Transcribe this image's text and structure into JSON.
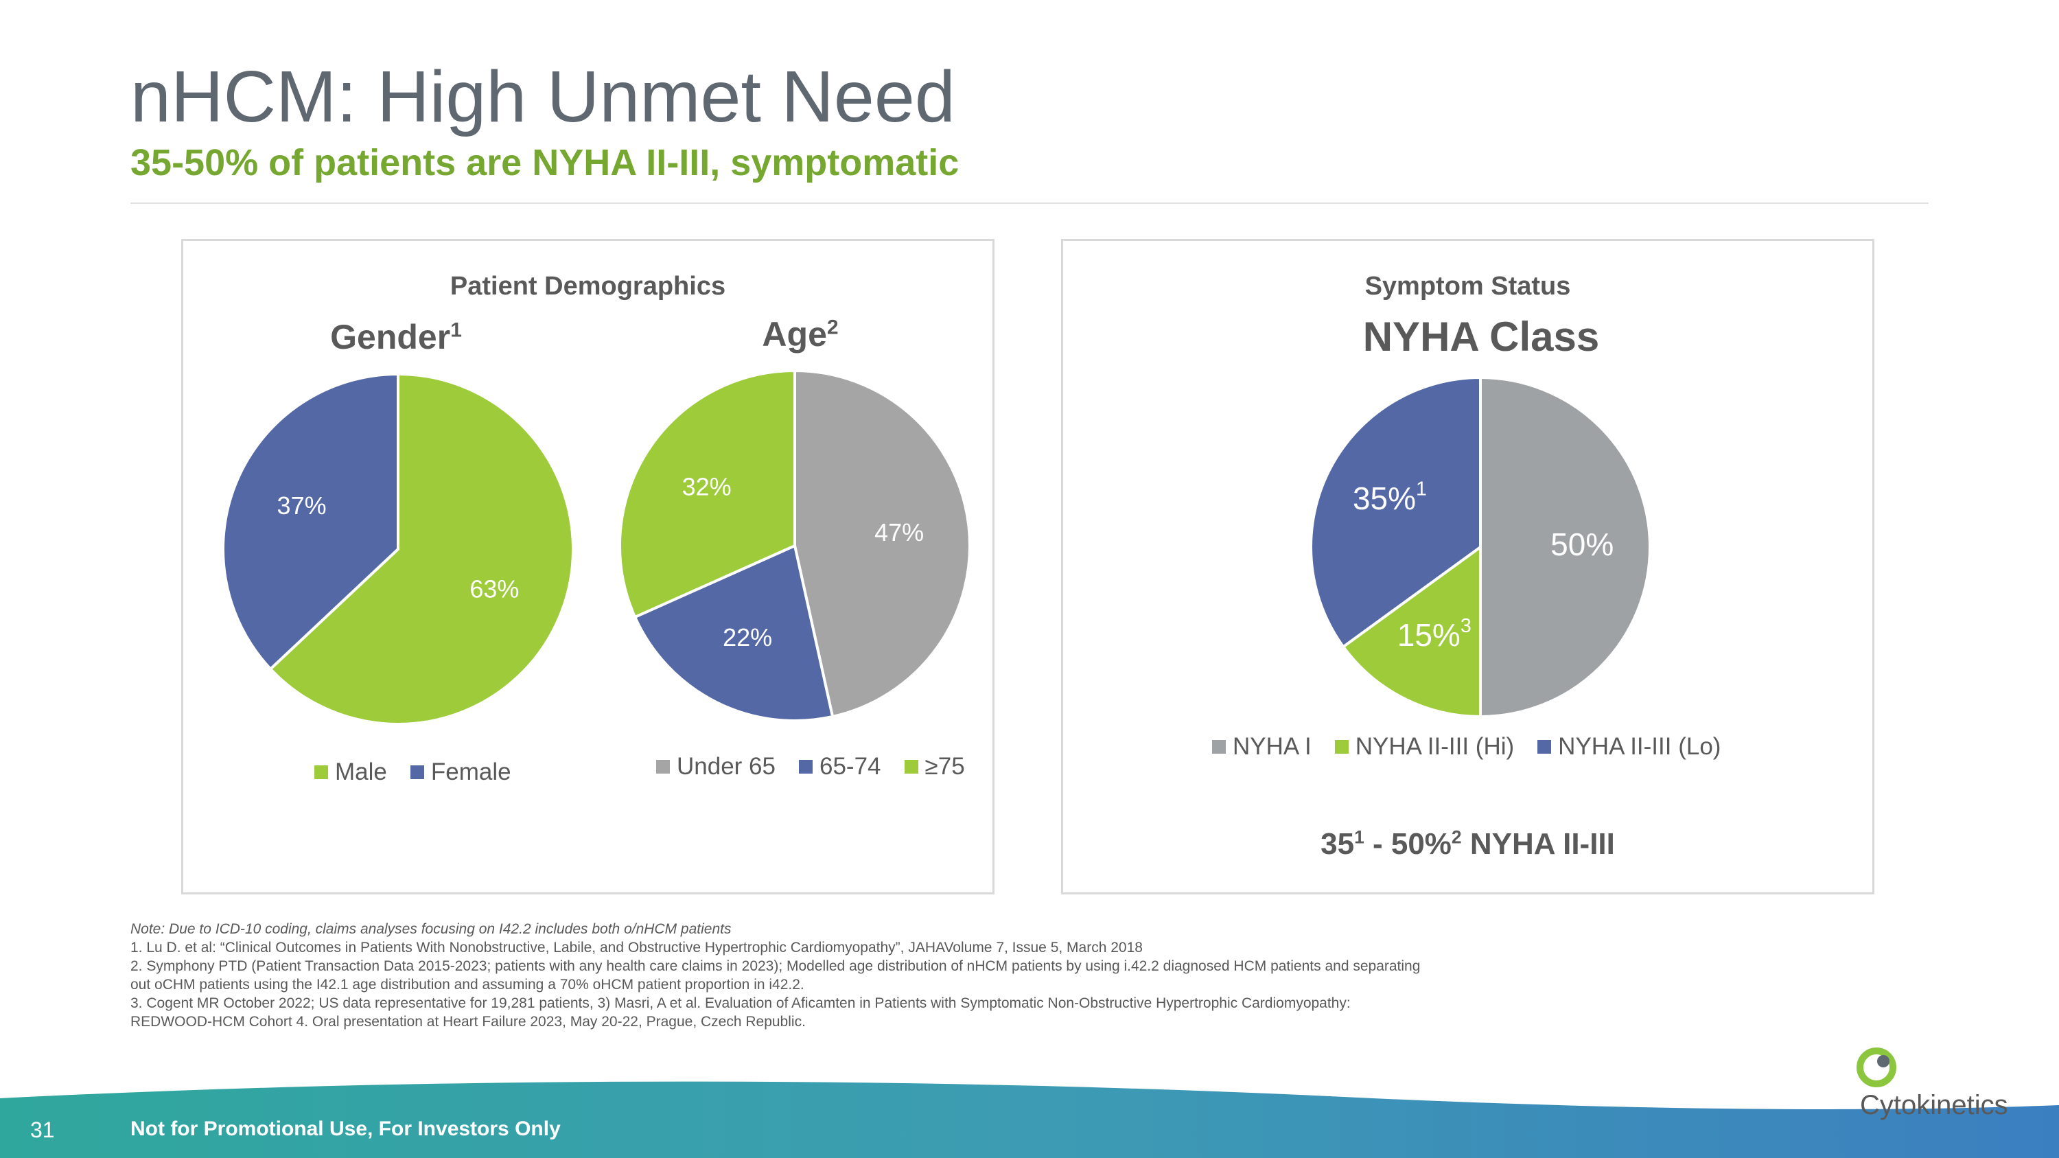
{
  "title": "nHCM: High Unmet Need",
  "subtitle": "35-50% of patients are NYHA II-III, symptomatic",
  "panels": {
    "left_title": "Patient Demographics",
    "right_title": "Symptom Status"
  },
  "colors": {
    "green": "#9dcb3a",
    "blue": "#5368a5",
    "gray_age": "#a5a5a5",
    "gray_nyha": "#9ea2a4",
    "title_gray": "#5f6770",
    "subtitle_green": "#76a731"
  },
  "chart_data": [
    {
      "type": "pie",
      "title": "Gender",
      "title_sup": "1",
      "slices": [
        {
          "label": "Male",
          "value": 63,
          "display": "63%",
          "color": "#9dcb3a"
        },
        {
          "label": "Female",
          "value": 37,
          "display": "37%",
          "color": "#5368a5"
        }
      ],
      "legend": [
        "Male",
        "Female"
      ]
    },
    {
      "type": "pie",
      "title": "Age",
      "title_sup": "2",
      "slices": [
        {
          "label": "Under 65",
          "value": 47,
          "display": "47%",
          "color": "#a5a5a5"
        },
        {
          "label": "65-74",
          "value": 22,
          "display": "22%",
          "color": "#5368a5"
        },
        {
          "label": "≥75",
          "value": 32,
          "display": "32%",
          "color": "#9dcb3a"
        }
      ],
      "legend": [
        "Under 65",
        "65-74",
        "≥75"
      ]
    },
    {
      "type": "pie",
      "title": "NYHA Class",
      "title_sup": "",
      "slices": [
        {
          "label": "NYHA I",
          "value": 50,
          "display": "50%",
          "sup": "",
          "color": "#9ea2a4"
        },
        {
          "label": "NYHA II-III (Hi)",
          "value": 15,
          "display": "15%",
          "sup": "3",
          "color": "#9dcb3a"
        },
        {
          "label": "NYHA II-III (Lo)",
          "value": 35,
          "display": "35%",
          "sup": "1",
          "color": "#5368a5"
        }
      ],
      "legend": [
        "NYHA I",
        "NYHA II-III (Hi)",
        "NYHA II-III (Lo)"
      ]
    }
  ],
  "summary": {
    "part1": "35",
    "sup1": "1",
    "part2": " - 50%",
    "sup2": "2",
    "part3": " NYHA II-III"
  },
  "footnotes": {
    "note": "Note: Due to ICD-10 coding, claims analyses focusing on I42.2 includes both o/nHCM patients",
    "lines": [
      "1. Lu D. et al: “Clinical Outcomes in Patients With Nonobstructive, Labile, and Obstructive Hypertrophic Cardiomyopathy”, JAHAVolume 7, Issue 5, March 2018",
      "2. Symphony PTD (Patient Transaction Data 2015-2023; patients with any health care claims in 2023); Modelled age distribution of nHCM patients by using  i.42.2 diagnosed HCM patients and separating",
      "out oCHM patients using the I42.1 age distribution and assuming a 70% oHCM patient proportion in i42.2.",
      "3. Cogent MR October 2022; US data representative for 19,281 patients, 3) Masri, A et al. Evaluation of Aficamten in Patients with Symptomatic Non-Obstructive Hypertrophic Cardiomyopathy:",
      "REDWOOD-HCM Cohort 4. Oral presentation at Heart Failure 2023, May 20-22, Prague, Czech Republic."
    ]
  },
  "footer": {
    "page_number": "31",
    "disclaimer": "Not for Promotional Use, For Investors Only",
    "logo_text": "Cytokinetics"
  }
}
